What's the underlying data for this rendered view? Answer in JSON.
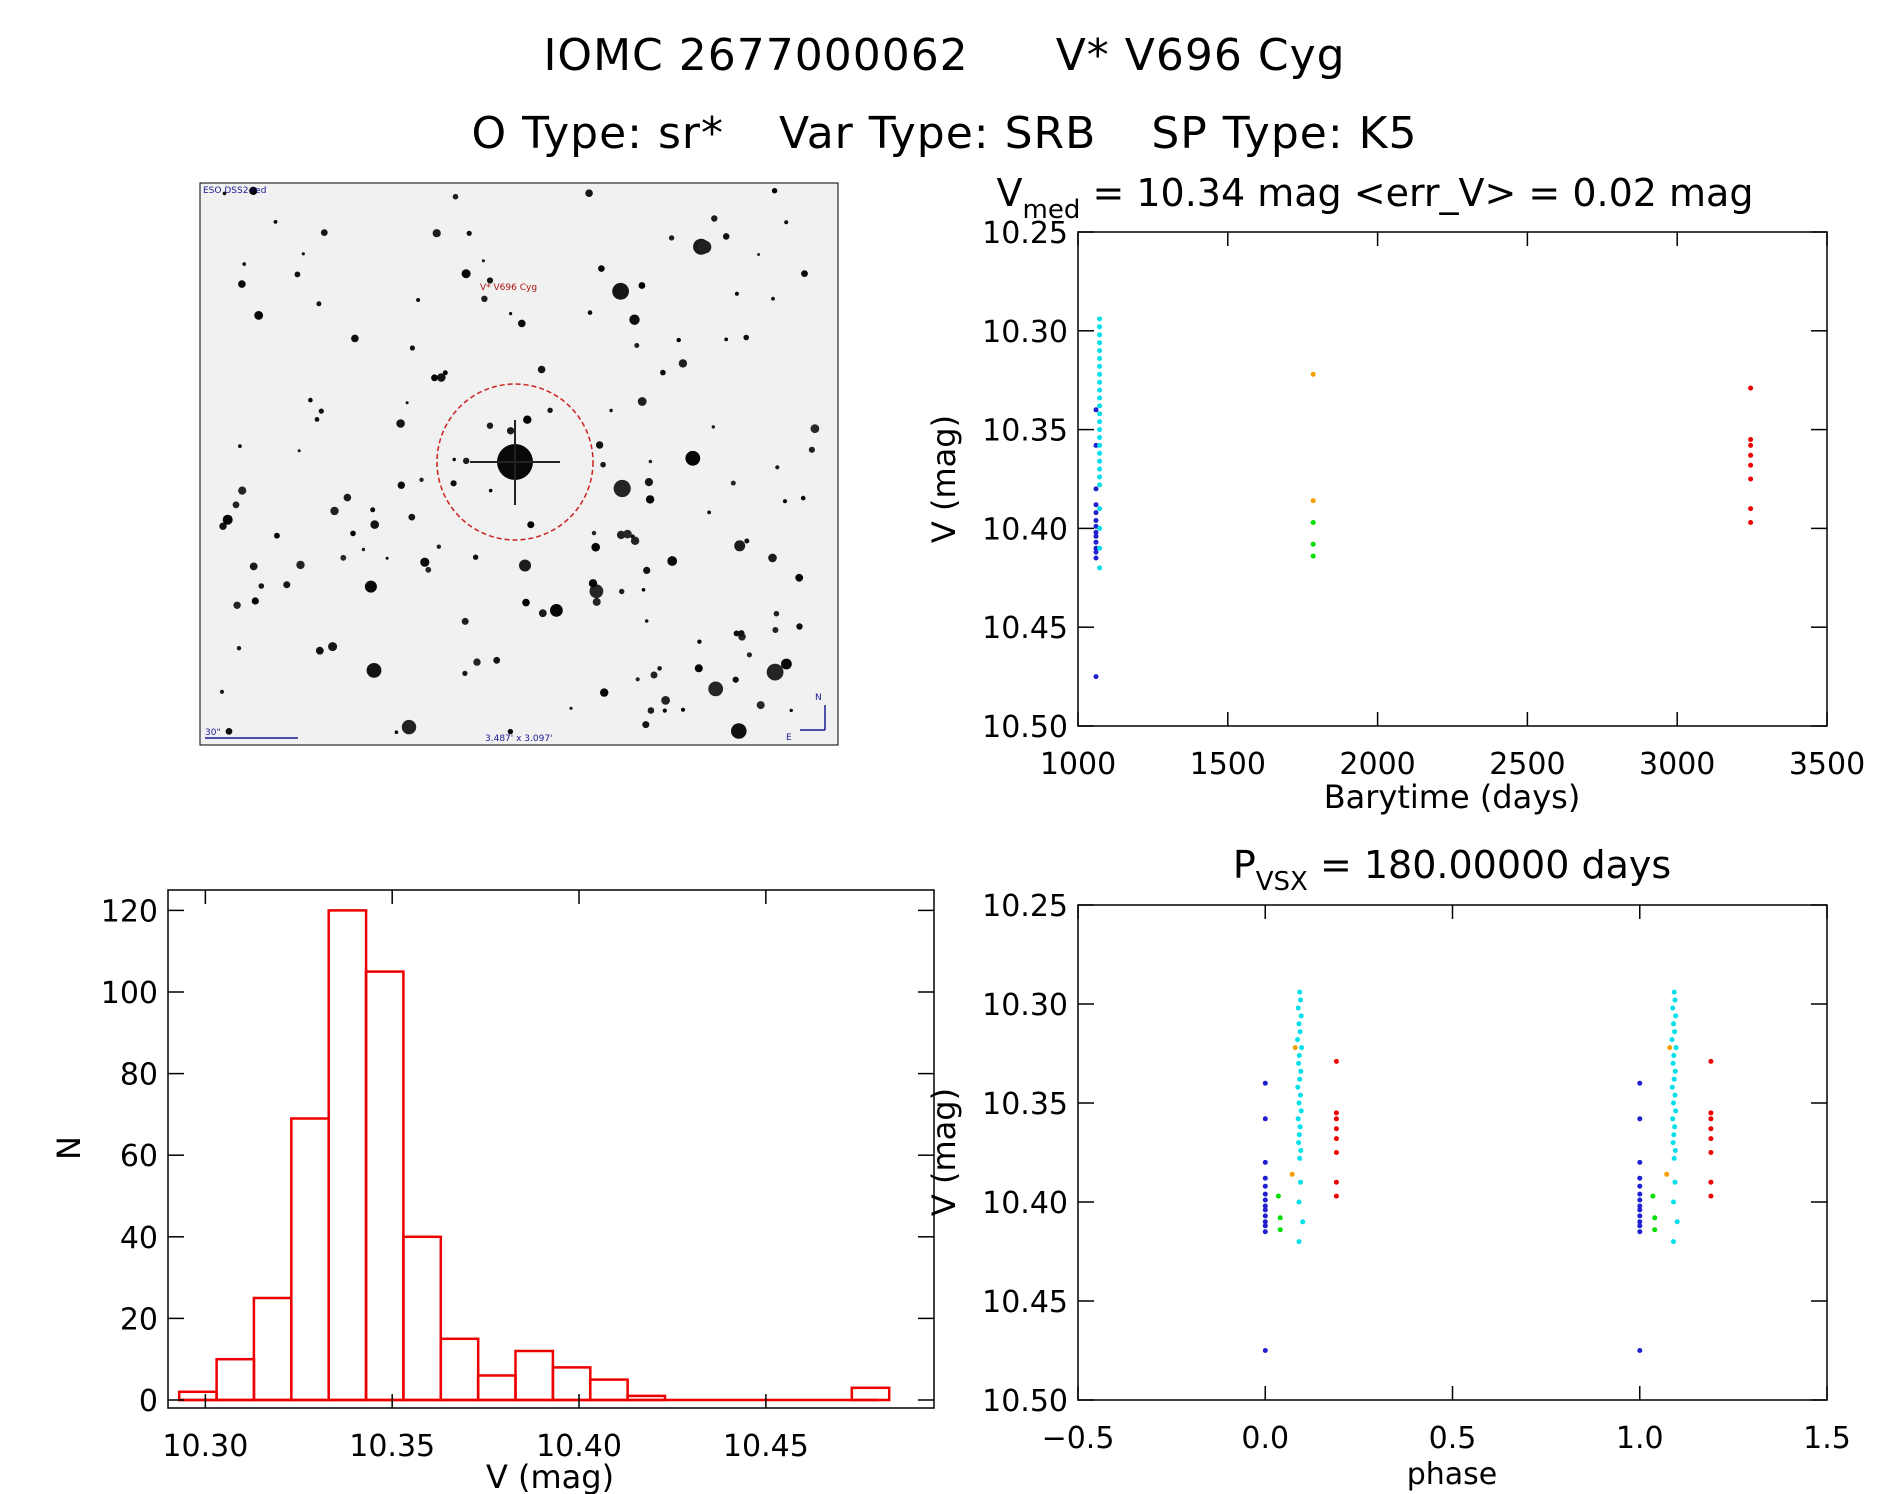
{
  "header": {
    "object_id": "IOMC 2677000062",
    "star_name": "V* V696 Cyg",
    "otype": "O Type: sr*",
    "vartype": "Var Type: SRB",
    "sptype": "SP Type: K5"
  },
  "sky_image": {
    "survey_label": "ESO DSS2-red",
    "target_label": "V* V696 Cyg",
    "scale_label": "30\"",
    "fov_label": "3.487' x 3.097'",
    "north_label": "N",
    "east_label": "E"
  },
  "colors": {
    "blue": "#2020d0",
    "cyan": "#00e0e8",
    "orange": "#f5a000",
    "green": "#00dd00",
    "red": "#ee0000",
    "hist": "#ee0000"
  },
  "chart_data": [
    {
      "id": "lightcurve",
      "type": "scatter",
      "title_main": "V",
      "title_sub": "med",
      "title_rest": " = 10.34 mag <err_V> = 0.02 mag",
      "xlabel": "Barytime (days)",
      "ylabel": "V (mag)",
      "xlim": [
        1000,
        3500
      ],
      "ylim": [
        10.25,
        10.5
      ],
      "y_inverted": true,
      "xticks": [
        "1000",
        "1500",
        "2000",
        "2500",
        "3000",
        "3500"
      ],
      "yticks": [
        "10.25",
        "10.30",
        "10.35",
        "10.40",
        "10.45",
        "10.50"
      ],
      "series": [
        {
          "name": "blue",
          "color_key": "blue",
          "x": [
            1060,
            1060,
            1060,
            1060,
            1060,
            1060,
            1060,
            1060,
            1060,
            1060,
            1060,
            1060,
            1060,
            1060
          ],
          "y": [
            10.34,
            10.358,
            10.38,
            10.388,
            10.392,
            10.396,
            10.399,
            10.402,
            10.404,
            10.407,
            10.41,
            10.412,
            10.415,
            10.475
          ]
        },
        {
          "name": "cyan",
          "color_key": "cyan",
          "x": [
            1072,
            1072,
            1072,
            1072,
            1072,
            1072,
            1072,
            1072,
            1072,
            1072,
            1072,
            1072,
            1072,
            1072,
            1072,
            1072,
            1072,
            1072,
            1072,
            1072,
            1072,
            1072,
            1072,
            1072,
            1072,
            1072
          ],
          "y": [
            10.294,
            10.298,
            10.302,
            10.306,
            10.31,
            10.314,
            10.318,
            10.322,
            10.326,
            10.33,
            10.334,
            10.338,
            10.342,
            10.346,
            10.35,
            10.354,
            10.358,
            10.362,
            10.366,
            10.37,
            10.374,
            10.378,
            10.39,
            10.4,
            10.41,
            10.42
          ]
        },
        {
          "name": "orange",
          "color_key": "orange",
          "x": [
            1785,
            1785
          ],
          "y": [
            10.322,
            10.386
          ]
        },
        {
          "name": "green",
          "color_key": "green",
          "x": [
            1785,
            1785,
            1785
          ],
          "y": [
            10.397,
            10.408,
            10.414
          ]
        },
        {
          "name": "red",
          "color_key": "red",
          "x": [
            3245,
            3245,
            3245,
            3245,
            3245,
            3245,
            3245,
            3245
          ],
          "y": [
            10.329,
            10.355,
            10.358,
            10.363,
            10.368,
            10.375,
            10.39,
            10.397
          ]
        }
      ]
    },
    {
      "id": "histogram",
      "type": "bar",
      "xlabel": "V (mag)",
      "ylabel": "N",
      "xlim": [
        10.29,
        10.495
      ],
      "ylim": [
        0,
        125
      ],
      "xticks": [
        "10.30",
        "10.35",
        "10.40",
        "10.45"
      ],
      "yticks": [
        "0",
        "20",
        "40",
        "60",
        "80",
        "100",
        "120"
      ],
      "bin_width": 0.01,
      "bin_starts": [
        10.293,
        10.303,
        10.313,
        10.323,
        10.333,
        10.343,
        10.353,
        10.363,
        10.373,
        10.383,
        10.393,
        10.403,
        10.413,
        10.423,
        10.433,
        10.443,
        10.453,
        10.463,
        10.473
      ],
      "values": [
        2,
        10,
        25,
        69,
        120,
        105,
        40,
        15,
        6,
        12,
        8,
        5,
        1,
        0,
        0,
        0,
        0,
        0,
        3
      ]
    },
    {
      "id": "phased",
      "type": "scatter",
      "title_main": "P",
      "title_sub": "VSX",
      "title_rest": " = 180.00000 days",
      "xlabel": "phase",
      "ylabel": "V (mag)",
      "xlim": [
        -0.5,
        1.5
      ],
      "ylim": [
        10.25,
        10.5
      ],
      "y_inverted": true,
      "xticks": [
        "−0.5",
        "0.0",
        "0.5",
        "1.0",
        "1.5"
      ],
      "yticks": [
        "10.25",
        "10.30",
        "10.35",
        "10.40",
        "10.45",
        "10.50"
      ],
      "series": [
        {
          "name": "blue",
          "color_key": "blue",
          "x": [
            0,
            0,
            0,
            0,
            0,
            0,
            0,
            0,
            0,
            0,
            0,
            0,
            0,
            0
          ],
          "y": [
            10.34,
            10.358,
            10.38,
            10.388,
            10.392,
            10.396,
            10.399,
            10.402,
            10.404,
            10.407,
            10.41,
            10.412,
            10.415,
            10.475
          ]
        },
        {
          "name": "cyan",
          "color_key": "cyan",
          "x": [
            0.092,
            0.094,
            0.088,
            0.096,
            0.09,
            0.093,
            0.086,
            0.097,
            0.091,
            0.089,
            0.095,
            0.092,
            0.087,
            0.094,
            0.09,
            0.096,
            0.088,
            0.093,
            0.091,
            0.089,
            0.095,
            0.092,
            0.094,
            0.09,
            0.1,
            0.09
          ],
          "y": [
            10.294,
            10.298,
            10.302,
            10.306,
            10.31,
            10.314,
            10.318,
            10.322,
            10.326,
            10.33,
            10.334,
            10.338,
            10.342,
            10.346,
            10.35,
            10.354,
            10.358,
            10.362,
            10.366,
            10.37,
            10.374,
            10.378,
            10.39,
            10.4,
            10.41,
            10.42
          ]
        },
        {
          "name": "orange",
          "color_key": "orange",
          "x": [
            0.08,
            0.072
          ],
          "y": [
            10.322,
            10.386
          ]
        },
        {
          "name": "green",
          "color_key": "green",
          "x": [
            0.035,
            0.04,
            0.04
          ],
          "y": [
            10.397,
            10.408,
            10.414
          ]
        },
        {
          "name": "red",
          "color_key": "red",
          "x": [
            0.19,
            0.19,
            0.19,
            0.19,
            0.19,
            0.19,
            0.19,
            0.19
          ],
          "y": [
            10.329,
            10.355,
            10.358,
            10.363,
            10.368,
            10.375,
            10.39,
            10.397
          ]
        }
      ],
      "repeat_offset": 1.0
    }
  ]
}
